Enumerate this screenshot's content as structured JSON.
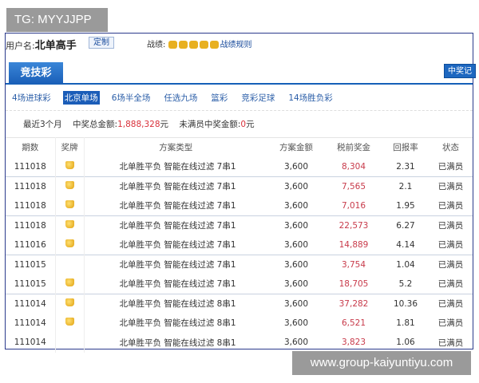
{
  "watermark_top": "TG: MYYJJPP",
  "watermark_bottom": "www.group-kaiyuntiyu.com",
  "header": {
    "user_label": "用户名:",
    "user_name": "北单高手",
    "custom_button": "定制",
    "record_label": "战绩:",
    "record_rules": "战绩规则"
  },
  "tab": "竞技彩",
  "win_record_button": "中奖记",
  "subnav": [
    "4场进球彩",
    "北京单场",
    "6场半全场",
    "任选九场",
    "篮彩",
    "竞彩足球",
    "14场胜负彩"
  ],
  "subnav_active": 1,
  "summary": {
    "period": "最近3个月",
    "total_label": "中奖总金额:",
    "total_value": "1,888,328",
    "unit": "元",
    "unfilled_label": "未满员中奖金额:",
    "unfilled_value": "0"
  },
  "table": {
    "headers": [
      "期数",
      "奖牌",
      "方案类型",
      "方案金额",
      "税前奖金",
      "回报率",
      "状态"
    ],
    "rows": [
      {
        "issue": "111018",
        "medal": true,
        "type": "北单胜平负 智能在线过滤 7串1",
        "amount": "3,600",
        "prize": "8,304",
        "return": "2.31",
        "status": "已满员"
      },
      {
        "issue": "111018",
        "medal": true,
        "type": "北单胜平负 智能在线过滤 7串1",
        "amount": "3,600",
        "prize": "7,565",
        "return": "2.1",
        "status": "已满员"
      },
      {
        "issue": "111018",
        "medal": true,
        "type": "北单胜平负 智能在线过滤 7串1",
        "amount": "3,600",
        "prize": "7,016",
        "return": "1.95",
        "status": "已满员"
      },
      {
        "issue": "111018",
        "medal": true,
        "type": "北单胜平负 智能在线过滤 7串1",
        "amount": "3,600",
        "prize": "22,573",
        "return": "6.27",
        "status": "已满员"
      },
      {
        "issue": "111016",
        "medal": true,
        "type": "北单胜平负 智能在线过滤 7串1",
        "amount": "3,600",
        "prize": "14,889",
        "return": "4.14",
        "status": "已满员"
      },
      {
        "issue": "111015",
        "medal": false,
        "type": "北单胜平负 智能在线过滤 7串1",
        "amount": "3,600",
        "prize": "3,754",
        "return": "1.04",
        "status": "已满员"
      },
      {
        "issue": "111015",
        "medal": true,
        "type": "北单胜平负 智能在线过滤 7串1",
        "amount": "3,600",
        "prize": "18,705",
        "return": "5.2",
        "status": "已满员"
      },
      {
        "issue": "111014",
        "medal": true,
        "type": "北单胜平负 智能在线过滤 8串1",
        "amount": "3,600",
        "prize": "37,282",
        "return": "10.36",
        "status": "已满员"
      },
      {
        "issue": "111014",
        "medal": true,
        "type": "北单胜平负 智能在线过滤 8串1",
        "amount": "3,600",
        "prize": "6,521",
        "return": "1.81",
        "status": "已满员"
      },
      {
        "issue": "111014",
        "medal": false,
        "type": "北单胜平负 智能在线过滤 8串1",
        "amount": "3,600",
        "prize": "3,823",
        "return": "1.06",
        "status": "已满员"
      }
    ]
  }
}
